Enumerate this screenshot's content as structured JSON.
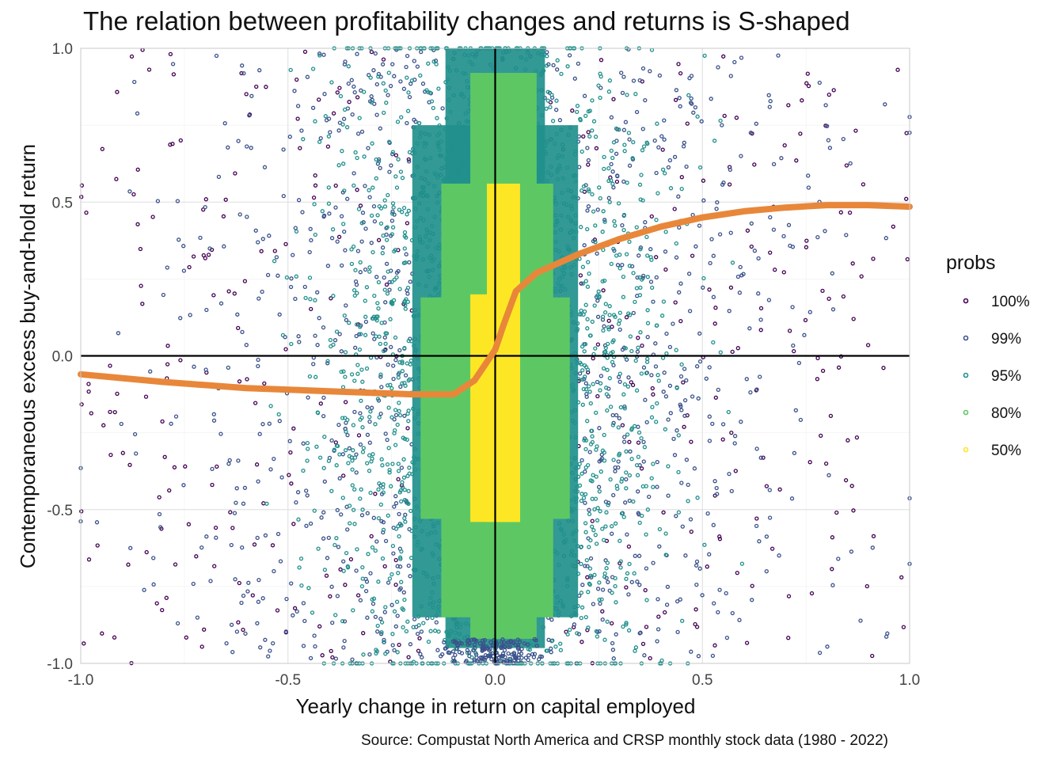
{
  "chart_data": {
    "type": "scatter",
    "title": "The relation between profitability changes and returns is S-shaped",
    "xlabel": "Yearly change in return on capital employed",
    "ylabel": "Contemporaneous excess buy-and-hold return",
    "caption": "Source: Compustat North America and CRSP monthly stock data (1980 - 2022)",
    "xlim": [
      -1.0,
      1.0
    ],
    "ylim": [
      -1.0,
      1.0
    ],
    "x_ticks": [
      "-1.0",
      "-0.5",
      "0.0",
      "0.5",
      "1.0"
    ],
    "y_ticks": [
      "-1.0",
      "-0.5",
      "0.0",
      "0.5",
      "1.0"
    ],
    "grid": true,
    "legend": {
      "title": "probs",
      "placement": "right",
      "entries": [
        {
          "label": "100%",
          "color": "#440154"
        },
        {
          "label": "99%",
          "color": "#3b528b"
        },
        {
          "label": "95%",
          "color": "#21908c"
        },
        {
          "label": "80%",
          "color": "#5dc863"
        },
        {
          "label": "50%",
          "color": "#fde725"
        }
      ]
    },
    "reference_lines": {
      "x": 0,
      "y": 0,
      "color": "#000000"
    },
    "regions": [
      {
        "prob": "100%",
        "color": "#440154",
        "x_range": [
          -1.0,
          1.0
        ],
        "y_range": [
          -1.0,
          1.0
        ]
      },
      {
        "prob": "99%",
        "color": "#3b528b",
        "x_range": [
          -1.0,
          1.0
        ],
        "y_range": [
          -1.0,
          1.0
        ]
      },
      {
        "prob": "95%",
        "color": "#21908c",
        "x_range": [
          -0.6,
          0.6
        ],
        "y_range": [
          -1.0,
          1.0
        ]
      },
      {
        "prob": "80%",
        "color": "#5dc863",
        "x_range": [
          -0.18,
          0.18
        ],
        "y_range": [
          -0.85,
          0.92
        ]
      },
      {
        "prob": "50%",
        "color": "#fde725",
        "x_range": [
          -0.06,
          0.06
        ],
        "y_range": [
          -0.54,
          0.56
        ]
      }
    ],
    "fit_line": {
      "color": "#e8873a",
      "x": [
        -1.0,
        -0.8,
        -0.6,
        -0.4,
        -0.2,
        -0.1,
        -0.05,
        0.0,
        0.02,
        0.05,
        0.1,
        0.2,
        0.3,
        0.4,
        0.5,
        0.6,
        0.7,
        0.8,
        0.9,
        1.0
      ],
      "y": [
        -0.06,
        -0.085,
        -0.105,
        -0.115,
        -0.125,
        -0.125,
        -0.08,
        0.02,
        0.1,
        0.21,
        0.27,
        0.33,
        0.38,
        0.42,
        0.45,
        0.47,
        0.482,
        0.49,
        0.49,
        0.485
      ]
    }
  }
}
